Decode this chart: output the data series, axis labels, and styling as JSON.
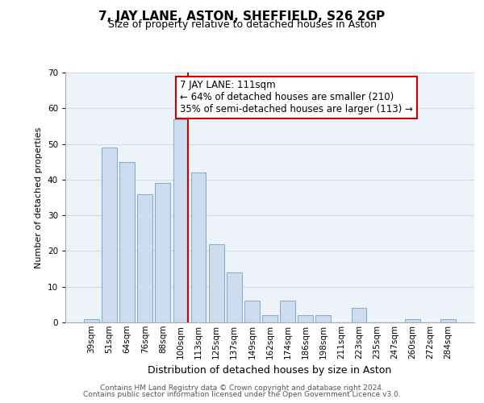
{
  "title": "7, JAY LANE, ASTON, SHEFFIELD, S26 2GP",
  "subtitle": "Size of property relative to detached houses in Aston",
  "xlabel": "Distribution of detached houses by size in Aston",
  "ylabel": "Number of detached properties",
  "bar_labels": [
    "39sqm",
    "51sqm",
    "64sqm",
    "76sqm",
    "88sqm",
    "100sqm",
    "113sqm",
    "125sqm",
    "137sqm",
    "149sqm",
    "162sqm",
    "174sqm",
    "186sqm",
    "198sqm",
    "211sqm",
    "223sqm",
    "235sqm",
    "247sqm",
    "260sqm",
    "272sqm",
    "284sqm"
  ],
  "bar_heights": [
    1,
    49,
    45,
    36,
    39,
    57,
    42,
    22,
    14,
    6,
    2,
    6,
    2,
    2,
    0,
    4,
    0,
    0,
    1,
    0,
    1
  ],
  "bar_color": "#cddcee",
  "bar_edge_color": "#8aafd4",
  "highlight_line_color": "#cc0000",
  "annotation_text": "7 JAY LANE: 111sqm\n← 64% of detached houses are smaller (210)\n35% of semi-detached houses are larger (113) →",
  "annotation_box_facecolor": "#ffffff",
  "annotation_box_edgecolor": "#cc0000",
  "ylim": [
    0,
    70
  ],
  "yticks": [
    0,
    10,
    20,
    30,
    40,
    50,
    60,
    70
  ],
  "footer_line1": "Contains HM Land Registry data © Crown copyright and database right 2024.",
  "footer_line2": "Contains public sector information licensed under the Open Government Licence v3.0.",
  "grid_color": "#d0dcea",
  "background_color": "#eef3fa",
  "title_fontsize": 11,
  "subtitle_fontsize": 9,
  "xlabel_fontsize": 9,
  "ylabel_fontsize": 8,
  "tick_fontsize": 7.5,
  "footer_fontsize": 6.5,
  "ann_fontsize": 8.5
}
